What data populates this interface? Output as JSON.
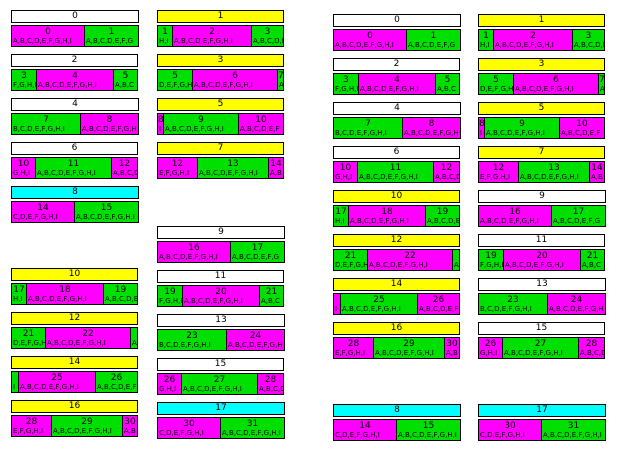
{
  "colors": {
    "white": "#ffffff",
    "yellow": "#ffff00",
    "cyan": "#00ffff",
    "magenta": "#ff00ff",
    "green": "#00e000"
  },
  "blocks": [
    {
      "header": "0",
      "hc": "white",
      "cells": [
        {
          "n": "0",
          "t": "A,B,C,D,E,F,G,H,I",
          "c": "magenta"
        },
        {
          "n": "1",
          "t": "A,B,C,D,E,F,G",
          "c": "green"
        }
      ]
    },
    {
      "header": "2",
      "hc": "white",
      "cells": [
        {
          "n": "3",
          "t": "F,G,H,I",
          "c": "green"
        },
        {
          "n": "4",
          "t": "A,B,C,D,E,F,G,H,I",
          "c": "magenta"
        },
        {
          "n": "5",
          "t": "A,B,C",
          "c": "green"
        }
      ]
    },
    {
      "header": "4",
      "hc": "white",
      "cells": [
        {
          "n": "7",
          "t": "B,C,D,E,F,G,H,I",
          "c": "green"
        },
        {
          "n": "8",
          "t": "A,B,C,D,E,F,G,H",
          "c": "magenta"
        }
      ]
    },
    {
      "header": "6",
      "hc": "white",
      "cells": [
        {
          "n": "10",
          "t": "G,H,I",
          "c": "magenta"
        },
        {
          "n": "11",
          "t": "A,B,C,D,E,F,G,H,I",
          "c": "green"
        },
        {
          "n": "12",
          "t": "A,B,C,D",
          "c": "magenta"
        }
      ]
    },
    {
      "header": "8",
      "hc": "cyan",
      "cells": [
        {
          "n": "14",
          "t": "C,D,E,F,G,H,I",
          "c": "magenta"
        },
        {
          "n": "15",
          "t": "A,B,C,D,E,F,G,H,I",
          "c": "green"
        }
      ]
    },
    {
      "header": "10",
      "hc": "yellow",
      "cells": [
        {
          "n": "17",
          "t": "H,I",
          "c": "green"
        },
        {
          "n": "18",
          "t": "A,B,C,D,E,F,G,H,I",
          "c": "magenta"
        },
        {
          "n": "19",
          "t": "A,B,C,D,E",
          "c": "green"
        }
      ]
    },
    {
      "header": "12",
      "hc": "yellow",
      "cells": [
        {
          "n": "21",
          "t": "D,E,F,G,H,I",
          "c": "green"
        },
        {
          "n": "22",
          "t": "A,B,C,D,E,F,G,H,I",
          "c": "magenta"
        },
        {
          "n": "",
          "t": "A",
          "c": "green"
        }
      ]
    },
    {
      "header": "14",
      "hc": "yellow",
      "cells": [
        {
          "n": "",
          "t": "I",
          "c": "green"
        },
        {
          "n": "25",
          "t": "A,B,C,D,E,F,G,H,I",
          "c": "magenta"
        },
        {
          "n": "26",
          "t": "A,B,C,D,E,F",
          "c": "green"
        }
      ]
    },
    {
      "header": "16",
      "hc": "yellow",
      "cells": [
        {
          "n": "28",
          "t": "E,F,G,H,I",
          "c": "magenta"
        },
        {
          "n": "29",
          "t": "A,B,C,D,E,F,G,H,I",
          "c": "green"
        },
        {
          "n": "30",
          "t": "A,B",
          "c": "magenta"
        }
      ]
    },
    {
      "header": "1",
      "hc": "yellow",
      "cells": [
        {
          "n": "1",
          "t": "H,I",
          "c": "green"
        },
        {
          "n": "2",
          "t": "A,B,C,D,E,F,G,H,I",
          "c": "magenta"
        },
        {
          "n": "3",
          "t": "A,B,C,D,E",
          "c": "green"
        }
      ]
    },
    {
      "header": "3",
      "hc": "yellow",
      "cells": [
        {
          "n": "5",
          "t": "D,E,F,G,H,I",
          "c": "green"
        },
        {
          "n": "6",
          "t": "A,B,C,D,E,F,G,H,I",
          "c": "magenta"
        },
        {
          "n": "7",
          "t": "A",
          "c": "green"
        }
      ]
    },
    {
      "header": "5",
      "hc": "yellow",
      "cells": [
        {
          "n": "8",
          "t": "I",
          "c": "magenta"
        },
        {
          "n": "9",
          "t": "A,B,C,D,E,F,G,H,I",
          "c": "green"
        },
        {
          "n": "10",
          "t": "A,B,C,D,E,F",
          "c": "magenta"
        }
      ]
    },
    {
      "header": "7",
      "hc": "yellow",
      "cells": [
        {
          "n": "12",
          "t": "E,F,G,H,I",
          "c": "magenta"
        },
        {
          "n": "13",
          "t": "A,B,C,D,E,F,G,H,I",
          "c": "green"
        },
        {
          "n": "14",
          "t": "A,B",
          "c": "magenta"
        }
      ]
    },
    {
      "header": "9",
      "hc": "white",
      "cells": [
        {
          "n": "16",
          "t": "A,B,C,D,E,F,G,H,I",
          "c": "magenta"
        },
        {
          "n": "17",
          "t": "A,B,C,D,E,F,G",
          "c": "green"
        }
      ]
    },
    {
      "header": "11",
      "hc": "white",
      "cells": [
        {
          "n": "19",
          "t": "F,G,H,I",
          "c": "green"
        },
        {
          "n": "20",
          "t": "A,B,C,D,E,F,G,H,I",
          "c": "magenta"
        },
        {
          "n": "21",
          "t": "A,B,C",
          "c": "green"
        }
      ]
    },
    {
      "header": "13",
      "hc": "white",
      "cells": [
        {
          "n": "23",
          "t": "B,C,D,E,F,G,H,I",
          "c": "green"
        },
        {
          "n": "24",
          "t": "A,B,C,D,E,F,G,H",
          "c": "magenta"
        }
      ]
    },
    {
      "header": "15",
      "hc": "white",
      "cells": [
        {
          "n": "26",
          "t": "G,H,I",
          "c": "magenta"
        },
        {
          "n": "27",
          "t": "A,B,C,D,E,F,G,H,I",
          "c": "green"
        },
        {
          "n": "28",
          "t": "A,B,C,D",
          "c": "magenta"
        }
      ]
    },
    {
      "header": "17",
      "hc": "cyan",
      "cells": [
        {
          "n": "30",
          "t": "C,D,E,F,G,H,I",
          "c": "magenta"
        },
        {
          "n": "31",
          "t": "A,B,C,D,E,F,G,H,I",
          "c": "green"
        }
      ]
    },
    {
      "header": "0",
      "hc": "white",
      "cells": [
        {
          "n": "0",
          "t": "A,B,C,D,E,F,G,H,I",
          "c": "magenta"
        },
        {
          "n": "1",
          "t": "A,B,C,D,E,F,G",
          "c": "green"
        }
      ]
    },
    {
      "header": "2",
      "hc": "white",
      "cells": [
        {
          "n": "3",
          "t": "F,G,H,I",
          "c": "green"
        },
        {
          "n": "4",
          "t": "A,B,C,D,E,F,G,H,I",
          "c": "magenta"
        },
        {
          "n": "5",
          "t": "A,B,C",
          "c": "green"
        }
      ]
    },
    {
      "header": "4",
      "hc": "white",
      "cells": [
        {
          "n": "7",
          "t": "B,C,D,E,F,G,H,I",
          "c": "green"
        },
        {
          "n": "8",
          "t": "A,B,C,D,E,F,G,H",
          "c": "magenta"
        }
      ]
    },
    {
      "header": "6",
      "hc": "white",
      "cells": [
        {
          "n": "10",
          "t": "G,H,I",
          "c": "magenta"
        },
        {
          "n": "11",
          "t": "A,B,C,D,E,F,G,H,I",
          "c": "green"
        },
        {
          "n": "12",
          "t": "A,B,C,D",
          "c": "magenta"
        }
      ]
    },
    {
      "header": "10",
      "hc": "yellow",
      "cells": [
        {
          "n": "17",
          "t": "H,I",
          "c": "green"
        },
        {
          "n": "18",
          "t": "A,B,C,D,E,F,G,H,I",
          "c": "magenta"
        },
        {
          "n": "19",
          "t": "A,B,C,D,E",
          "c": "green"
        }
      ]
    },
    {
      "header": "12",
      "hc": "yellow",
      "cells": [
        {
          "n": "21",
          "t": "D,E,F,G,H,I",
          "c": "green"
        },
        {
          "n": "22",
          "t": "A,B,C,D,E,F,G,H,I",
          "c": "magenta"
        },
        {
          "n": "",
          "t": "A",
          "c": "green"
        }
      ]
    },
    {
      "header": "14",
      "hc": "yellow",
      "cells": [
        {
          "n": "",
          "t": "I",
          "c": "magenta"
        },
        {
          "n": "25",
          "t": "A,B,C,D,E,F,G,H,I",
          "c": "green"
        },
        {
          "n": "26",
          "t": "A,B,C,D,E,F",
          "c": "magenta"
        }
      ]
    },
    {
      "header": "16",
      "hc": "yellow",
      "cells": [
        {
          "n": "28",
          "t": "E,F,G,H,I",
          "c": "magenta"
        },
        {
          "n": "29",
          "t": "A,B,C,D,E,F,G,H,I",
          "c": "green"
        },
        {
          "n": "30",
          "t": "A,B",
          "c": "magenta"
        }
      ]
    },
    {
      "header": "8",
      "hc": "cyan",
      "cells": [
        {
          "n": "14",
          "t": "C,D,E,F,G,H,I",
          "c": "magenta"
        },
        {
          "n": "15",
          "t": "A,B,C,D,E,F,G,H,I",
          "c": "green"
        }
      ]
    },
    {
      "header": "1",
      "hc": "yellow",
      "cells": [
        {
          "n": "1",
          "t": "H,I",
          "c": "green"
        },
        {
          "n": "2",
          "t": "A,B,C,D,E,F,G,H,I",
          "c": "magenta"
        },
        {
          "n": "3",
          "t": "A,B,C,D,E",
          "c": "green"
        }
      ]
    },
    {
      "header": "3",
      "hc": "yellow",
      "cells": [
        {
          "n": "5",
          "t": "D,E,F,G,H,I",
          "c": "green"
        },
        {
          "n": "6",
          "t": "A,B,C,D,E,F,G,H,I",
          "c": "magenta"
        },
        {
          "n": "7",
          "t": "A",
          "c": "green"
        }
      ]
    },
    {
      "header": "5",
      "hc": "yellow",
      "cells": [
        {
          "n": "8",
          "t": "I",
          "c": "magenta"
        },
        {
          "n": "9",
          "t": "A,B,C,D,E,F,G,H,I",
          "c": "green"
        },
        {
          "n": "10",
          "t": "A,B,C,D,E,F",
          "c": "magenta"
        }
      ]
    },
    {
      "header": "7",
      "hc": "yellow",
      "cells": [
        {
          "n": "12",
          "t": "E,F,G,H,I",
          "c": "magenta"
        },
        {
          "n": "13",
          "t": "A,B,C,D,E,F,G,H,I",
          "c": "green"
        },
        {
          "n": "14",
          "t": "A,B",
          "c": "magenta"
        }
      ]
    },
    {
      "header": "9",
      "hc": "white",
      "cells": [
        {
          "n": "16",
          "t": "A,B,C,D,E,F,G,H,I",
          "c": "magenta"
        },
        {
          "n": "17",
          "t": "A,B,C,D,E,F,G",
          "c": "green"
        }
      ]
    },
    {
      "header": "11",
      "hc": "white",
      "cells": [
        {
          "n": "19",
          "t": "F,G,H,I",
          "c": "green"
        },
        {
          "n": "20",
          "t": "A,B,C,D,E,F,G,H,I",
          "c": "magenta"
        },
        {
          "n": "21",
          "t": "A,B,C",
          "c": "green"
        }
      ]
    },
    {
      "header": "13",
      "hc": "white",
      "cells": [
        {
          "n": "23",
          "t": "B,C,D,E,F,G,H,I",
          "c": "green"
        },
        {
          "n": "24",
          "t": "A,B,C,D,E,F,G,H",
          "c": "magenta"
        }
      ]
    },
    {
      "header": "15",
      "hc": "white",
      "cells": [
        {
          "n": "26",
          "t": "G,H,I",
          "c": "magenta"
        },
        {
          "n": "27",
          "t": "A,B,C,D,E,F,G,H,I",
          "c": "green"
        },
        {
          "n": "28",
          "t": "A,B,C,D",
          "c": "magenta"
        }
      ]
    },
    {
      "header": "17",
      "hc": "cyan",
      "cells": [
        {
          "n": "30",
          "t": "C,D,E,F,G,H,I",
          "c": "magenta"
        },
        {
          "n": "31",
          "t": "A,B,C,D,E,F,G,H,I",
          "c": "green"
        }
      ]
    }
  ]
}
